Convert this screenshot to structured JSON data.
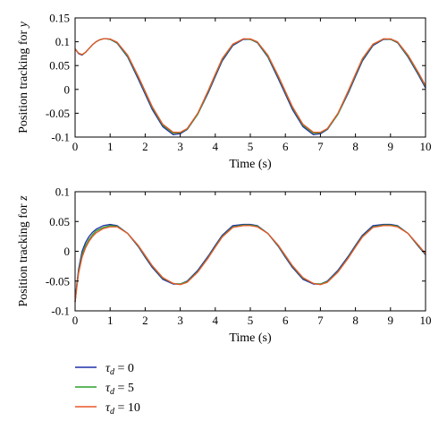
{
  "chart_data": [
    {
      "type": "line",
      "xlabel": "Time (s)",
      "ylabel": {
        "prefix": "Position tracking for ",
        "var": "y"
      },
      "xlim": [
        0,
        10
      ],
      "ylim": [
        -0.1,
        0.15
      ],
      "xticks": [
        "0",
        "1",
        "2",
        "3",
        "4",
        "5",
        "6",
        "7",
        "8",
        "9",
        "10"
      ],
      "yticks": [
        "0.15",
        "0.1",
        "0.05",
        "0",
        "-0.05",
        "-0.1"
      ],
      "grid": false,
      "series": [
        {
          "color": "#1f2fa8",
          "x": [
            0,
            0.1,
            0.2,
            0.3,
            0.4,
            0.5,
            0.6,
            0.7,
            0.8,
            0.9,
            1.0,
            1.2,
            1.5,
            1.8,
            2.0,
            2.2,
            2.5,
            2.8,
            3.0,
            3.2,
            3.5,
            3.8,
            4.0,
            4.2,
            4.5,
            4.8,
            5.0,
            5.2,
            5.5,
            5.8,
            6.0,
            6.2,
            6.5,
            6.8,
            7.0,
            7.2,
            7.5,
            7.8,
            8.0,
            8.2,
            8.5,
            8.8,
            9.0,
            9.2,
            9.5,
            9.8,
            10.0
          ],
          "y": [
            0.085,
            0.075,
            0.072,
            0.078,
            0.086,
            0.094,
            0.1,
            0.104,
            0.106,
            0.106,
            0.105,
            0.097,
            0.068,
            0.022,
            -0.01,
            -0.042,
            -0.078,
            -0.095,
            -0.093,
            -0.084,
            -0.052,
            -0.007,
            0.027,
            0.06,
            0.092,
            0.105,
            0.105,
            0.098,
            0.068,
            0.022,
            -0.01,
            -0.042,
            -0.078,
            -0.095,
            -0.093,
            -0.084,
            -0.052,
            -0.007,
            0.027,
            0.06,
            0.092,
            0.105,
            0.105,
            0.098,
            0.068,
            0.03,
            0.003
          ]
        },
        {
          "color": "#2ca02c",
          "x": [
            0,
            0.1,
            0.2,
            0.3,
            0.4,
            0.5,
            0.6,
            0.7,
            0.8,
            0.9,
            1.0,
            1.2,
            1.5,
            1.8,
            2.0,
            2.2,
            2.5,
            2.8,
            3.0,
            3.2,
            3.5,
            3.8,
            4.0,
            4.2,
            4.5,
            4.8,
            5.0,
            5.2,
            5.5,
            5.8,
            6.0,
            6.2,
            6.5,
            6.8,
            7.0,
            7.2,
            7.5,
            7.8,
            8.0,
            8.2,
            8.5,
            8.8,
            9.0,
            9.2,
            9.5,
            9.8,
            10.0
          ],
          "y": [
            0.085,
            0.076,
            0.073,
            0.078,
            0.086,
            0.094,
            0.1,
            0.104,
            0.106,
            0.106,
            0.105,
            0.098,
            0.07,
            0.026,
            -0.006,
            -0.038,
            -0.075,
            -0.092,
            -0.091,
            -0.083,
            -0.052,
            -0.004,
            0.03,
            0.063,
            0.094,
            0.106,
            0.105,
            0.099,
            0.07,
            0.026,
            -0.006,
            -0.038,
            -0.075,
            -0.092,
            -0.091,
            -0.083,
            -0.052,
            -0.004,
            0.03,
            0.063,
            0.094,
            0.106,
            0.105,
            0.099,
            0.07,
            0.033,
            0.006
          ]
        },
        {
          "color": "#e8562a",
          "x": [
            0,
            0.1,
            0.2,
            0.3,
            0.4,
            0.5,
            0.6,
            0.7,
            0.8,
            0.9,
            1.0,
            1.2,
            1.5,
            1.8,
            2.0,
            2.2,
            2.5,
            2.8,
            3.0,
            3.2,
            3.5,
            3.8,
            4.0,
            4.2,
            4.5,
            4.8,
            5.0,
            5.2,
            5.5,
            5.8,
            6.0,
            6.2,
            6.5,
            6.8,
            7.0,
            7.2,
            7.5,
            7.8,
            8.0,
            8.2,
            8.5,
            8.8,
            9.0,
            9.2,
            9.5,
            9.8,
            10.0
          ],
          "y": [
            0.085,
            0.076,
            0.073,
            0.078,
            0.086,
            0.094,
            0.1,
            0.104,
            0.106,
            0.106,
            0.106,
            0.099,
            0.072,
            0.028,
            -0.004,
            -0.036,
            -0.073,
            -0.09,
            -0.09,
            -0.082,
            -0.05,
            -0.002,
            0.032,
            0.065,
            0.095,
            0.106,
            0.106,
            0.1,
            0.072,
            0.028,
            -0.004,
            -0.036,
            -0.073,
            -0.09,
            -0.09,
            -0.082,
            -0.05,
            -0.002,
            0.032,
            0.065,
            0.095,
            0.106,
            0.106,
            0.1,
            0.072,
            0.035,
            0.008
          ]
        }
      ]
    },
    {
      "type": "line",
      "xlabel": "Time (s)",
      "ylabel": {
        "prefix": "Position tracking for ",
        "var": "z"
      },
      "xlim": [
        0,
        10
      ],
      "ylim": [
        -0.1,
        0.1
      ],
      "xticks": [
        "0",
        "1",
        "2",
        "3",
        "4",
        "5",
        "6",
        "7",
        "8",
        "9",
        "10"
      ],
      "yticks": [
        "0.1",
        "0.05",
        "0",
        "-0.05",
        "-0.1"
      ],
      "grid": false,
      "series": [
        {
          "color": "#1f2fa8",
          "x": [
            0,
            0.05,
            0.1,
            0.2,
            0.3,
            0.4,
            0.5,
            0.6,
            0.8,
            1.0,
            1.2,
            1.5,
            1.8,
            2.0,
            2.2,
            2.5,
            2.8,
            3.0,
            3.2,
            3.5,
            3.8,
            4.0,
            4.2,
            4.5,
            4.8,
            5.0,
            5.2,
            5.5,
            5.8,
            6.0,
            6.2,
            6.5,
            6.8,
            7.0,
            7.2,
            7.5,
            7.8,
            8.0,
            8.2,
            8.5,
            8.8,
            9.0,
            9.2,
            9.5,
            9.8,
            10.0
          ],
          "y": [
            -0.085,
            -0.055,
            -0.03,
            0.0,
            0.015,
            0.025,
            0.032,
            0.037,
            0.043,
            0.045,
            0.043,
            0.03,
            0.008,
            -0.01,
            -0.027,
            -0.047,
            -0.055,
            -0.055,
            -0.05,
            -0.032,
            -0.008,
            0.01,
            0.027,
            0.043,
            0.045,
            0.045,
            0.043,
            0.03,
            0.008,
            -0.01,
            -0.027,
            -0.047,
            -0.055,
            -0.055,
            -0.05,
            -0.032,
            -0.008,
            0.01,
            0.027,
            0.043,
            0.045,
            0.045,
            0.043,
            0.03,
            0.008,
            -0.006
          ]
        },
        {
          "color": "#2ca02c",
          "x": [
            0,
            0.05,
            0.1,
            0.2,
            0.3,
            0.4,
            0.5,
            0.6,
            0.8,
            1.0,
            1.2,
            1.5,
            1.8,
            2.0,
            2.2,
            2.5,
            2.8,
            3.0,
            3.2,
            3.5,
            3.8,
            4.0,
            4.2,
            4.5,
            4.8,
            5.0,
            5.2,
            5.5,
            5.8,
            6.0,
            6.2,
            6.5,
            6.8,
            7.0,
            7.2,
            7.5,
            7.8,
            8.0,
            8.2,
            8.5,
            8.8,
            9.0,
            9.2,
            9.5,
            9.8,
            10.0
          ],
          "y": [
            -0.085,
            -0.058,
            -0.034,
            -0.006,
            0.01,
            0.02,
            0.028,
            0.034,
            0.04,
            0.043,
            0.042,
            0.03,
            0.009,
            -0.008,
            -0.025,
            -0.045,
            -0.054,
            -0.055,
            -0.051,
            -0.034,
            -0.01,
            0.008,
            0.025,
            0.041,
            0.044,
            0.044,
            0.042,
            0.03,
            0.009,
            -0.008,
            -0.025,
            -0.045,
            -0.054,
            -0.055,
            -0.051,
            -0.034,
            -0.01,
            0.008,
            0.025,
            0.041,
            0.044,
            0.044,
            0.042,
            0.03,
            0.009,
            -0.005
          ]
        },
        {
          "color": "#e8562a",
          "x": [
            0,
            0.05,
            0.1,
            0.2,
            0.3,
            0.4,
            0.5,
            0.6,
            0.8,
            1.0,
            1.2,
            1.5,
            1.8,
            2.0,
            2.2,
            2.5,
            2.8,
            3.0,
            3.2,
            3.5,
            3.8,
            4.0,
            4.2,
            4.5,
            4.8,
            5.0,
            5.2,
            5.5,
            5.8,
            6.0,
            6.2,
            6.5,
            6.8,
            7.0,
            7.2,
            7.5,
            7.8,
            8.0,
            8.2,
            8.5,
            8.8,
            9.0,
            9.2,
            9.5,
            9.8,
            10.0
          ],
          "y": [
            -0.085,
            -0.06,
            -0.037,
            -0.01,
            0.006,
            0.017,
            0.025,
            0.031,
            0.038,
            0.041,
            0.041,
            0.03,
            0.01,
            -0.007,
            -0.024,
            -0.044,
            -0.054,
            -0.056,
            -0.052,
            -0.035,
            -0.011,
            0.007,
            0.024,
            0.04,
            0.043,
            0.043,
            0.041,
            0.03,
            0.01,
            -0.007,
            -0.024,
            -0.044,
            -0.054,
            -0.056,
            -0.052,
            -0.035,
            -0.011,
            0.007,
            0.024,
            0.04,
            0.043,
            0.043,
            0.041,
            0.03,
            0.01,
            -0.004
          ]
        }
      ]
    }
  ],
  "legend": [
    {
      "symbol": "τ",
      "sub": "d",
      "text": " = 0",
      "color": "#1f2fa8"
    },
    {
      "symbol": "τ",
      "sub": "d",
      "text": " = 5",
      "color": "#2ca02c"
    },
    {
      "symbol": "τ",
      "sub": "d",
      "text": " = 10",
      "color": "#e8562a"
    }
  ]
}
